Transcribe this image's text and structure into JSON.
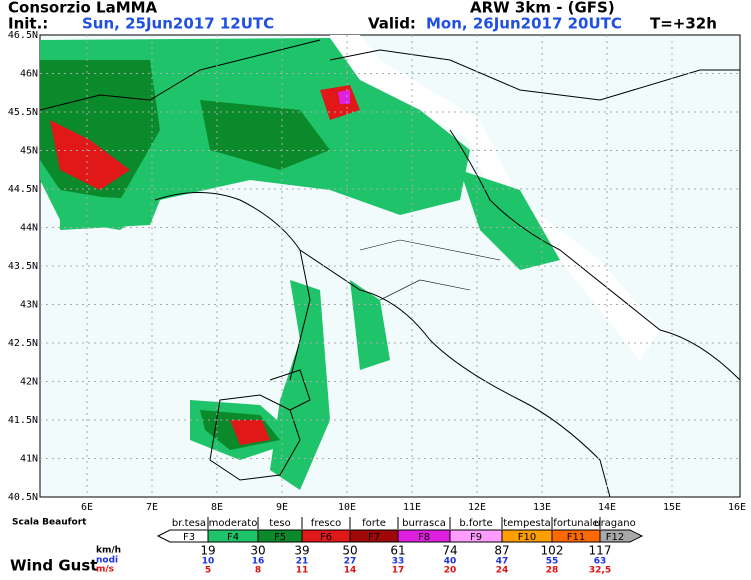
{
  "header": {
    "title": "Consorzio LaMMA",
    "init_label": "Init.:",
    "init_date": "Sun, 25Jun2017 12UTC",
    "model": "ARW 3km - (GFS)",
    "valid_label": "Valid:",
    "valid_date": "Mon, 26Jun2017 20UTC",
    "lead": "T=+32h"
  },
  "map": {
    "lat_labels": [
      "46.5N",
      "46N",
      "45.5N",
      "45N",
      "44.5N",
      "44N",
      "43.5N",
      "43N",
      "42.5N",
      "42N",
      "41.5N",
      "41N",
      "40.5N"
    ],
    "lon_labels": [
      "6E",
      "7E",
      "8E",
      "9E",
      "10E",
      "11E",
      "12E",
      "13E",
      "14E",
      "15E",
      "16E"
    ]
  },
  "legend": {
    "scale_title": "Scala Beaufort",
    "gust_title": "Wind Gust",
    "units": [
      "km/h",
      "nodi",
      "m/s"
    ],
    "classes": [
      {
        "descriptor": "br.tesa",
        "code": "F3",
        "color": "#ffffff"
      },
      {
        "descriptor": "moderato",
        "code": "F4",
        "color": "#1fc46a"
      },
      {
        "descriptor": "teso",
        "code": "F5",
        "color": "#0a8a2a"
      },
      {
        "descriptor": "fresco",
        "code": "F6",
        "color": "#e01818"
      },
      {
        "descriptor": "forte",
        "code": "F7",
        "color": "#a00808"
      },
      {
        "descriptor": "burrasca",
        "code": "F8",
        "color": "#e020e0"
      },
      {
        "descriptor": "b.forte",
        "code": "F9",
        "color": "#ff9cff"
      },
      {
        "descriptor": "tempesta",
        "code": "F10",
        "color": "#ffa000"
      },
      {
        "descriptor": "fortunale",
        "code": "F11",
        "color": "#ff6a00"
      },
      {
        "descriptor": "uragano",
        "code": "F12",
        "color": "#a8a8a8"
      }
    ],
    "kmh": [
      "19",
      "30",
      "39",
      "50",
      "61",
      "74",
      "87",
      "102",
      "117"
    ],
    "knots": [
      "10",
      "16",
      "21",
      "27",
      "33",
      "40",
      "47",
      "55",
      "63"
    ],
    "ms": [
      "5",
      "8",
      "11",
      "14",
      "17",
      "20",
      "24",
      "28",
      "32,5"
    ]
  }
}
